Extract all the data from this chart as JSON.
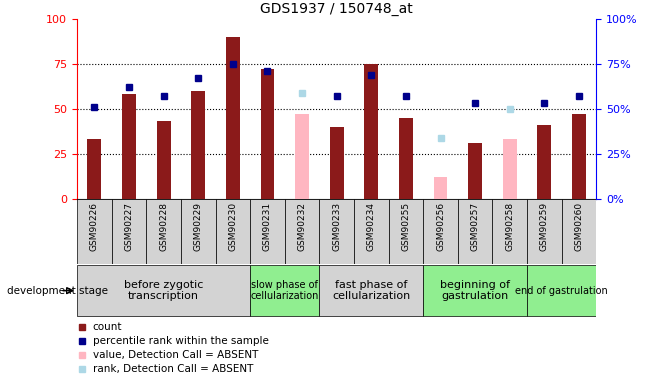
{
  "title": "GDS1937 / 150748_at",
  "samples": [
    "GSM90226",
    "GSM90227",
    "GSM90228",
    "GSM90229",
    "GSM90230",
    "GSM90231",
    "GSM90232",
    "GSM90233",
    "GSM90234",
    "GSM90255",
    "GSM90256",
    "GSM90257",
    "GSM90258",
    "GSM90259",
    "GSM90260"
  ],
  "bar_values": [
    33,
    58,
    43,
    60,
    90,
    72,
    null,
    40,
    75,
    45,
    null,
    31,
    null,
    41,
    47
  ],
  "bar_absent": [
    null,
    null,
    null,
    null,
    null,
    null,
    47,
    null,
    null,
    null,
    12,
    null,
    33,
    null,
    null
  ],
  "rank_values": [
    51,
    62,
    57,
    67,
    75,
    71,
    null,
    57,
    69,
    57,
    null,
    53,
    null,
    53,
    57
  ],
  "rank_absent": [
    null,
    null,
    null,
    null,
    null,
    null,
    59,
    null,
    null,
    null,
    34,
    null,
    50,
    null,
    null
  ],
  "stages": [
    {
      "label": "before zygotic\ntranscription",
      "start": 0,
      "end": 5,
      "color": "#d3d3d3",
      "fontsize": 8
    },
    {
      "label": "slow phase of\ncellularization",
      "start": 5,
      "end": 7,
      "color": "#90EE90",
      "fontsize": 7
    },
    {
      "label": "fast phase of\ncellularization",
      "start": 7,
      "end": 10,
      "color": "#d3d3d3",
      "fontsize": 8
    },
    {
      "label": "beginning of\ngastrulation",
      "start": 10,
      "end": 13,
      "color": "#90EE90",
      "fontsize": 8
    },
    {
      "label": "end of gastrulation",
      "start": 13,
      "end": 15,
      "color": "#90EE90",
      "fontsize": 7
    }
  ],
  "bar_color": "#8B1A1A",
  "bar_absent_color": "#FFB6C1",
  "rank_color": "#00008B",
  "rank_absent_color": "#ADD8E6",
  "ylim": [
    0,
    100
  ],
  "grid_lines": [
    25,
    50,
    75
  ],
  "legend_items": [
    {
      "label": "count",
      "color": "#8B1A1A"
    },
    {
      "label": "percentile rank within the sample",
      "color": "#00008B"
    },
    {
      "label": "value, Detection Call = ABSENT",
      "color": "#FFB6C1"
    },
    {
      "label": "rank, Detection Call = ABSENT",
      "color": "#ADD8E6"
    }
  ]
}
